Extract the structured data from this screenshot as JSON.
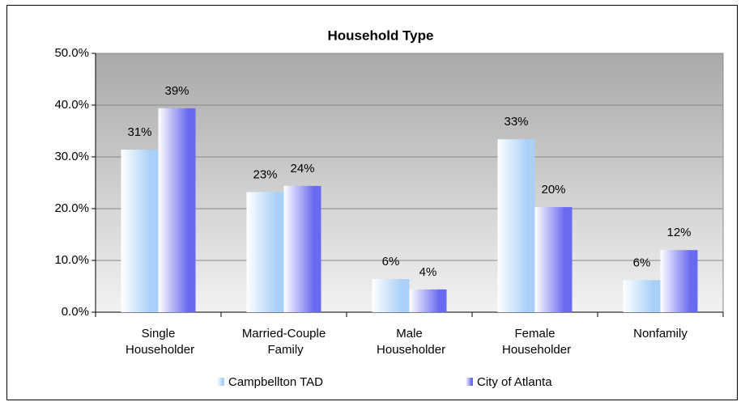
{
  "chart_data": {
    "type": "bar",
    "title": "Household Type",
    "categories": [
      "Single Householder",
      "Married-Couple Family",
      "Male Householder",
      "Female Householder",
      "Nonfamily"
    ],
    "series": [
      {
        "name": "Campbellton TAD",
        "color": "#a8d0f8",
        "values": [
          31.4,
          23.2,
          6.4,
          33.4,
          6.2
        ],
        "value_labels": [
          "31%",
          "23%",
          "6%",
          "33%",
          "6%"
        ]
      },
      {
        "name": "City of Atlanta",
        "color": "#6a6af0",
        "values": [
          39.4,
          24.4,
          4.4,
          20.3,
          12.0
        ],
        "value_labels": [
          "39%",
          "24%",
          "4%",
          "20%",
          "12%"
        ]
      }
    ],
    "ylim": [
      0,
      50
    ],
    "yticks": [
      {
        "value": 0,
        "label": "0.0%"
      },
      {
        "value": 10,
        "label": "10.0%"
      },
      {
        "value": 20,
        "label": "20.0%"
      },
      {
        "value": 30,
        "label": "30.0%"
      },
      {
        "value": 40,
        "label": "40.0%"
      },
      {
        "value": 50,
        "label": "50.0%"
      }
    ],
    "grid": true,
    "legend": "bottom"
  }
}
